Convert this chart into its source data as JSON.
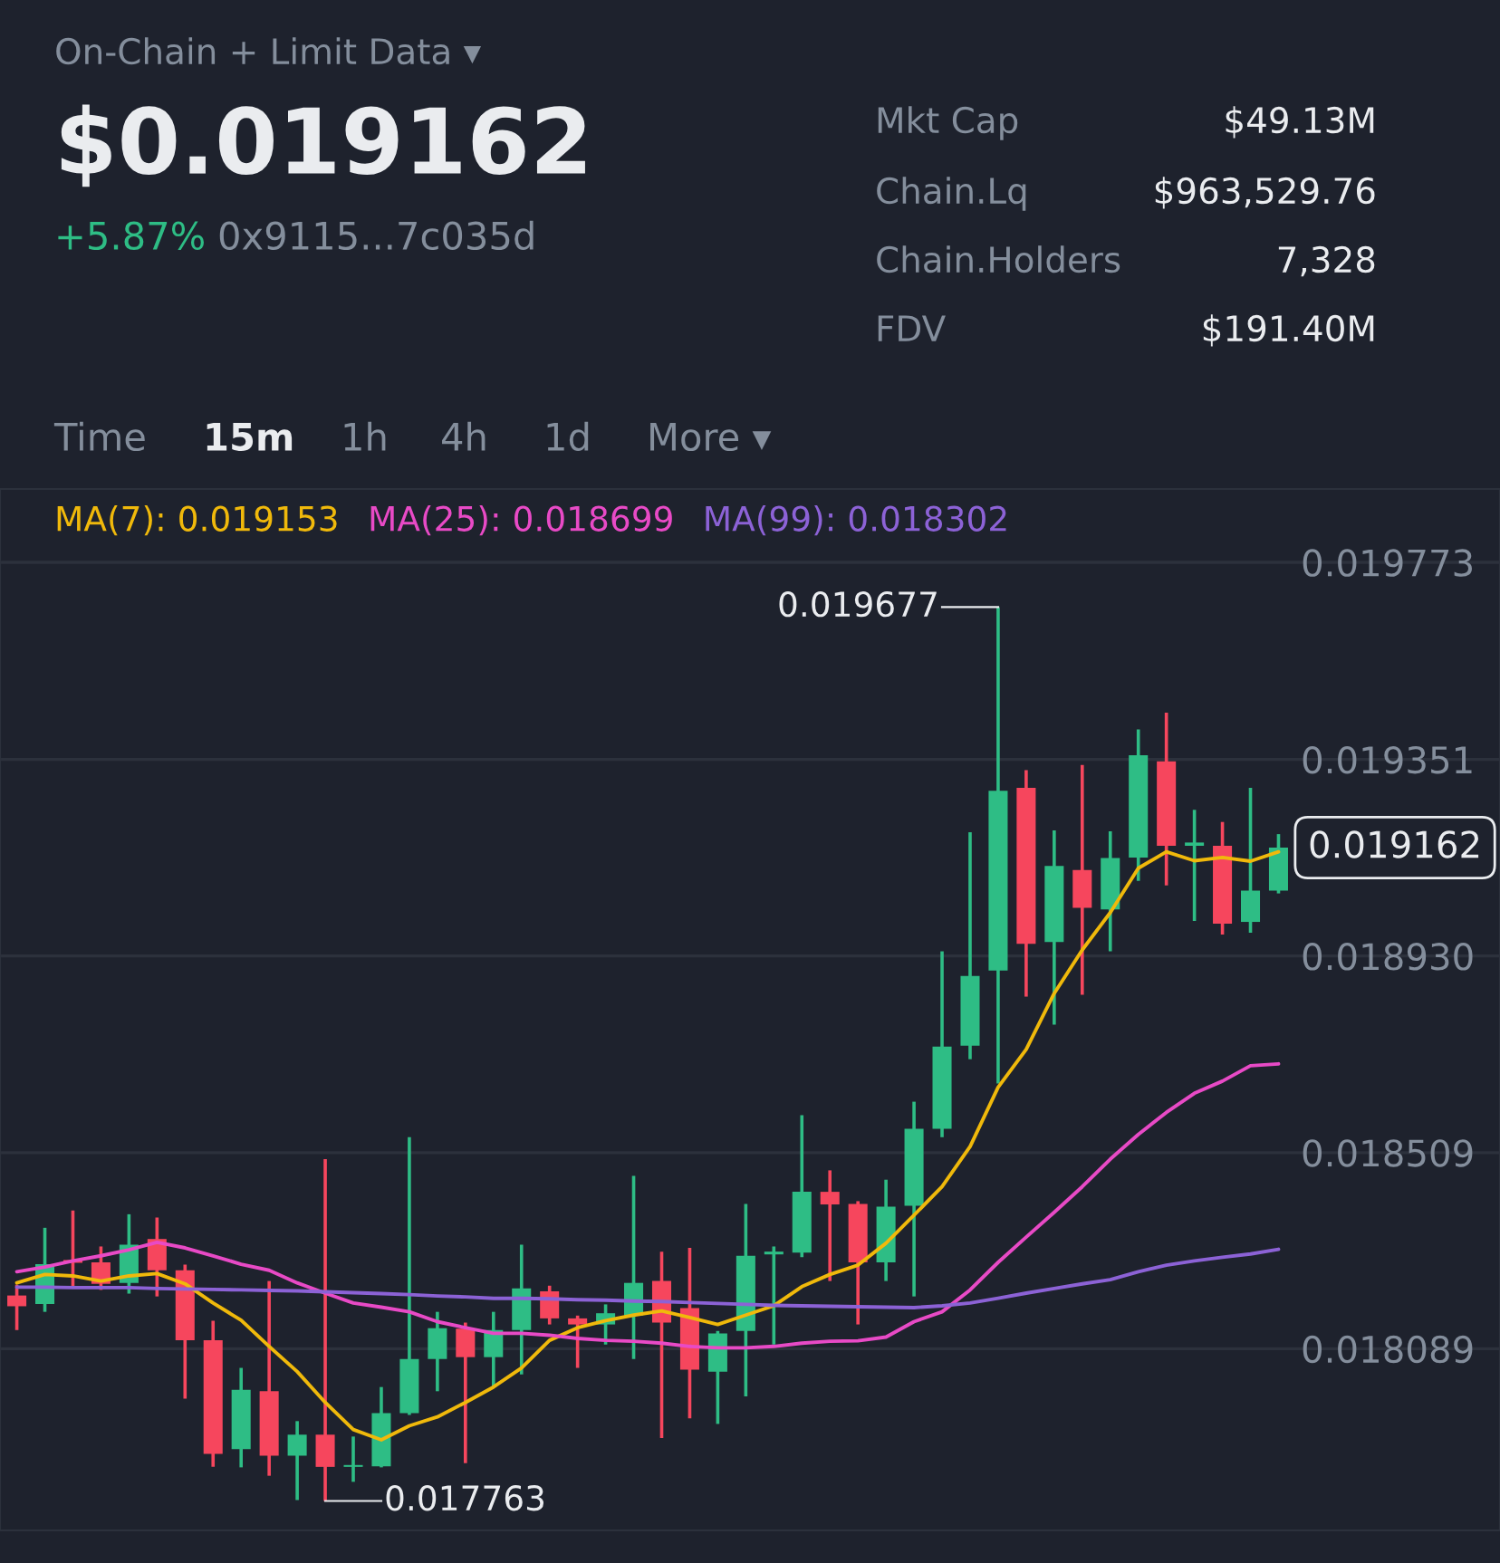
{
  "chart_data": {
    "type": "candlestick",
    "title": "$0.019162",
    "categories": [
      null,
      null,
      null,
      null,
      null,
      null,
      null,
      null,
      null,
      null,
      null,
      null,
      null,
      null,
      null,
      null,
      null,
      null,
      null,
      null,
      null,
      null,
      null,
      null,
      null,
      null,
      null,
      null,
      null,
      null,
      null,
      null,
      null,
      null,
      null,
      null,
      null,
      null,
      null,
      null,
      null,
      null,
      null,
      null,
      null,
      null
    ],
    "ohlc": [
      [
        0.018203,
        0.018226,
        0.018129,
        0.01818
      ],
      [
        0.018185,
        0.018348,
        0.018168,
        0.01827
      ],
      [
        0.018279,
        0.018385,
        0.018222,
        0.018273
      ],
      [
        0.018274,
        0.018308,
        0.018215,
        0.018228
      ],
      [
        0.01823,
        0.018377,
        0.018207,
        0.018312
      ],
      [
        0.018324,
        0.01837,
        0.018201,
        0.018257
      ],
      [
        0.018257,
        0.018269,
        0.017982,
        0.018107
      ],
      [
        0.018107,
        0.018149,
        0.017836,
        0.017864
      ],
      [
        0.017874,
        0.018048,
        0.017835,
        0.018001
      ],
      [
        0.017998,
        0.018234,
        0.017817,
        0.01786
      ],
      [
        0.01786,
        0.017934,
        0.017765,
        0.017905
      ],
      [
        0.017905,
        0.018495,
        0.017763,
        0.017836
      ],
      [
        0.017836,
        0.017901,
        0.017804,
        0.01784
      ],
      [
        0.017837,
        0.018007,
        0.017835,
        0.017951
      ],
      [
        0.017951,
        0.018542,
        0.017947,
        0.018067
      ],
      [
        0.018067,
        0.018168,
        0.017998,
        0.018133
      ],
      [
        0.018132,
        0.018145,
        0.017844,
        0.018071
      ],
      [
        0.018071,
        0.018168,
        0.018007,
        0.018129
      ],
      [
        0.018129,
        0.018312,
        0.018034,
        0.018218
      ],
      [
        0.018212,
        0.018224,
        0.018141,
        0.018154
      ],
      [
        0.018154,
        0.01816,
        0.018048,
        0.018141
      ],
      [
        0.018141,
        0.018184,
        0.018098,
        0.018165
      ],
      [
        0.01816,
        0.018459,
        0.018067,
        0.01823
      ],
      [
        0.018234,
        0.018297,
        0.017898,
        0.018145
      ],
      [
        0.018176,
        0.018305,
        0.01794,
        0.018044
      ],
      [
        0.01804,
        0.018127,
        0.017928,
        0.018122
      ],
      [
        0.018127,
        0.018399,
        0.017987,
        0.018288
      ],
      [
        0.018291,
        0.018308,
        0.018098,
        0.018297
      ],
      [
        0.018295,
        0.018589,
        0.018285,
        0.018425
      ],
      [
        0.018425,
        0.018471,
        0.018234,
        0.018398
      ],
      [
        0.018399,
        0.018405,
        0.018141,
        0.018274
      ],
      [
        0.018274,
        0.018451,
        0.018234,
        0.018393
      ],
      [
        0.018395,
        0.018618,
        0.018201,
        0.01856
      ],
      [
        0.01856,
        0.01894,
        0.018542,
        0.018736
      ],
      [
        0.018738,
        0.019195,
        0.018709,
        0.018887
      ],
      [
        0.018899,
        0.019677,
        0.018657,
        0.019284
      ],
      [
        0.01929,
        0.019328,
        0.018843,
        0.018956
      ],
      [
        0.01896,
        0.019199,
        0.018783,
        0.019123
      ],
      [
        0.019114,
        0.019339,
        0.018847,
        0.019033
      ],
      [
        0.01903,
        0.019197,
        0.01894,
        0.01914
      ],
      [
        0.019141,
        0.019415,
        0.019091,
        0.01936
      ],
      [
        0.019347,
        0.019451,
        0.019081,
        0.019166
      ],
      [
        0.019166,
        0.019243,
        0.019005,
        0.019173
      ],
      [
        0.019166,
        0.019217,
        0.018976,
        0.018999
      ],
      [
        0.019003,
        0.01929,
        0.01898,
        0.01907
      ],
      [
        0.01907,
        0.019191,
        0.019064,
        0.019162
      ]
    ],
    "colors": [
      "#f6465d",
      "#2ebd85",
      "#f6465d",
      "#f6465d",
      "#2ebd85",
      "#f6465d",
      "#f6465d",
      "#f6465d",
      "#2ebd85",
      "#f6465d",
      "#2ebd85",
      "#f6465d",
      "#2ebd85",
      "#2ebd85",
      "#2ebd85",
      "#2ebd85",
      "#f6465d",
      "#2ebd85",
      "#2ebd85",
      "#f6465d",
      "#f6465d",
      "#2ebd85",
      "#2ebd85",
      "#f6465d",
      "#f6465d",
      "#2ebd85",
      "#2ebd85",
      "#2ebd85",
      "#2ebd85",
      "#f6465d",
      "#f6465d",
      "#2ebd85",
      "#2ebd85",
      "#2ebd85",
      "#2ebd85",
      "#2ebd85",
      "#f6465d",
      "#2ebd85",
      "#f6465d",
      "#2ebd85",
      "#2ebd85",
      "#f6465d",
      "#2ebd85",
      "#f6465d",
      "#2ebd85",
      "#2ebd85"
    ],
    "series": [
      {
        "type": "line",
        "name": "MA(7): 0.019153",
        "color": "#f0b90b",
        "values": [
          0.01823,
          0.018248,
          0.018245,
          0.018234,
          0.018245,
          0.01825,
          0.018228,
          0.018187,
          0.01815,
          0.018094,
          0.01804,
          0.017974,
          0.017916,
          0.017894,
          0.017924,
          0.017943,
          0.017974,
          0.018007,
          0.018048,
          0.018107,
          0.018134,
          0.018149,
          0.018161,
          0.01817,
          0.018156,
          0.018141,
          0.018161,
          0.018181,
          0.018222,
          0.018248,
          0.018268,
          0.018315,
          0.018375,
          0.018436,
          0.018522,
          0.018649,
          0.01873,
          0.01885,
          0.018943,
          0.019023,
          0.019118,
          0.019153,
          0.019134,
          0.019141,
          0.019133,
          0.019153
        ]
      },
      {
        "type": "line",
        "name": "MA(25): 0.018699",
        "color": "#e84ac6",
        "values": [
          0.018254,
          0.018264,
          0.018277,
          0.018288,
          0.018301,
          0.018317,
          0.018305,
          0.018288,
          0.01827,
          0.018257,
          0.01823,
          0.018208,
          0.018187,
          0.018178,
          0.018168,
          0.018147,
          0.018134,
          0.018122,
          0.018122,
          0.018118,
          0.018111,
          0.018107,
          0.018105,
          0.018101,
          0.018094,
          0.018091,
          0.018091,
          0.018094,
          0.018101,
          0.018105,
          0.018106,
          0.018114,
          0.018147,
          0.018168,
          0.018215,
          0.018274,
          0.018328,
          0.018381,
          0.018436,
          0.018495,
          0.018548,
          0.018595,
          0.018636,
          0.018662,
          0.018695,
          0.018699
        ]
      },
      {
        "type": "line",
        "name": "MA(99): 0.018302",
        "color": "#8c62d6",
        "values": [
          0.018221,
          0.018221,
          0.01822,
          0.01822,
          0.01822,
          0.018218,
          0.018217,
          0.018216,
          0.018215,
          0.018214,
          0.018213,
          0.018211,
          0.018209,
          0.018207,
          0.018205,
          0.018202,
          0.0182,
          0.018197,
          0.018197,
          0.018196,
          0.018194,
          0.018193,
          0.018191,
          0.01819,
          0.018188,
          0.018186,
          0.018184,
          0.018182,
          0.018181,
          0.01818,
          0.018179,
          0.018178,
          0.018177,
          0.018181,
          0.018187,
          0.018197,
          0.018208,
          0.018218,
          0.018228,
          0.018237,
          0.018254,
          0.018268,
          0.018277,
          0.018285,
          0.018292,
          0.018302
        ]
      }
    ],
    "ylim": [
      0.0177,
      0.01993
    ],
    "yticks": [
      0.018089,
      0.018509,
      {
        "value": 0.01893,
        "label": "0.018930"
      },
      0.019351,
      0.019773
    ],
    "grid": "y",
    "tick_labels": "y",
    "annotations": [
      "On-Chain + Limit Data ▾",
      "+5.87%",
      "0x9115...7c035d",
      "Mkt Cap",
      "$49.13M",
      "Chain.Lq",
      "$963,529.76",
      "Chain.Holders",
      "7,328",
      "FDV",
      "$191.40M",
      "Time",
      "15m",
      "1h",
      "4h",
      "1d",
      "More ▾",
      "0.019677",
      "0.017763",
      "0.019162"
    ]
  }
}
